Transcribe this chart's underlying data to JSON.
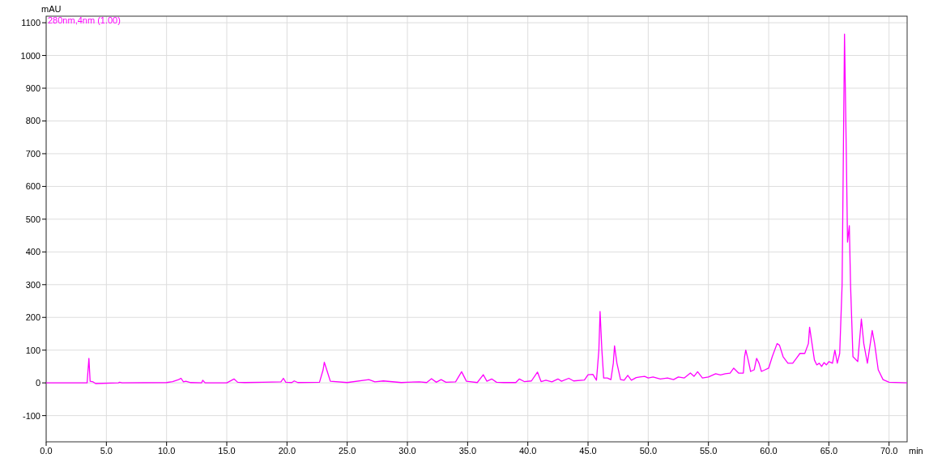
{
  "chart_data": {
    "type": "line",
    "ylabel": "mAU",
    "xlabel": "min",
    "xlim": [
      0,
      71.5
    ],
    "ylim": [
      -180,
      1120
    ],
    "xticks": [
      {
        "value": 0,
        "label": "0.0"
      },
      {
        "value": 5,
        "label": "5.0"
      },
      {
        "value": 10,
        "label": "10.0"
      },
      {
        "value": 15,
        "label": "15.0"
      },
      {
        "value": 20,
        "label": "20.0"
      },
      {
        "value": 25,
        "label": "25.0"
      },
      {
        "value": 30,
        "label": "30.0"
      },
      {
        "value": 35,
        "label": "35.0"
      },
      {
        "value": 40,
        "label": "40.0"
      },
      {
        "value": 45,
        "label": "45.0"
      },
      {
        "value": 50,
        "label": "50.0"
      },
      {
        "value": 55,
        "label": "55.0"
      },
      {
        "value": 60,
        "label": "60.0"
      },
      {
        "value": 65,
        "label": "65.0"
      },
      {
        "value": 70,
        "label": "70.0"
      }
    ],
    "yticks": [
      -100,
      0,
      100,
      200,
      300,
      400,
      500,
      600,
      700,
      800,
      900,
      1000,
      1100
    ],
    "grid": true,
    "legend": "top left",
    "series": [
      {
        "name": "280nm,4nm (1.00)",
        "color": "#ff00ff",
        "x": [
          0,
          3.4,
          3.55,
          3.65,
          3.9,
          4.1,
          6.0,
          6.1,
          6.3,
          10,
          10.5,
          11.0,
          11.2,
          11.4,
          11.6,
          12,
          12.9,
          13.0,
          13.2,
          15,
          15.6,
          15.9,
          16.5,
          18,
          19.5,
          19.7,
          19.9,
          20.4,
          20.6,
          20.9,
          22.7,
          23.0,
          23.1,
          23.3,
          23.6,
          25,
          26.8,
          27.3,
          28,
          29.5,
          30,
          31,
          31.6,
          32.0,
          32.4,
          32.8,
          33.2,
          34.0,
          34.5,
          34.9,
          35.8,
          36.3,
          36.6,
          37.0,
          37.4,
          38,
          39.0,
          39.3,
          39.7,
          40.3,
          40.8,
          41.1,
          41.5,
          42.0,
          42.5,
          42.8,
          43.4,
          43.8,
          44.7,
          45.0,
          45.4,
          45.7,
          45.9,
          46.0,
          46.15,
          46.3,
          46.6,
          46.9,
          47.1,
          47.2,
          47.4,
          47.7,
          48.0,
          48.3,
          48.6,
          49.0,
          49.3,
          49.7,
          50,
          50.4,
          51,
          51.6,
          52.1,
          52.5,
          53,
          53.5,
          53.8,
          54.1,
          54.5,
          55.0,
          55.6,
          56.0,
          56.4,
          56.8,
          57.1,
          57.5,
          57.9,
          58.0,
          58.1,
          58.3,
          58.5,
          58.8,
          59.0,
          59.2,
          59.4,
          59.7,
          60,
          60.3,
          60.7,
          60.9,
          61.2,
          61.6,
          62.0,
          62.3,
          62.6,
          63.0,
          63.3,
          63.4,
          63.6,
          63.8,
          64.0,
          64.2,
          64.4,
          64.6,
          64.8,
          65.0,
          65.3,
          65.5,
          65.7,
          65.9,
          66.1,
          66.3,
          66.45,
          66.55,
          66.7,
          66.8,
          67.0,
          67.4,
          67.7,
          67.9,
          68.2,
          68.6,
          68.8,
          69.1,
          69.5,
          70,
          71.5
        ],
        "values": [
          0,
          0,
          75,
          5,
          3,
          -2,
          0,
          2,
          0,
          1,
          4,
          10,
          14,
          3,
          5,
          1,
          0,
          8,
          0,
          0,
          12,
          2,
          1,
          2,
          3,
          14,
          2,
          1,
          6,
          1,
          2,
          40,
          63,
          40,
          5,
          1,
          10,
          3,
          6,
          1,
          2,
          3,
          1,
          13,
          2,
          10,
          2,
          3,
          34,
          5,
          1,
          25,
          5,
          12,
          2,
          1,
          1,
          12,
          4,
          6,
          33,
          4,
          8,
          3,
          12,
          5,
          14,
          6,
          9,
          25,
          26,
          8,
          100,
          218,
          100,
          15,
          15,
          10,
          60,
          113,
          60,
          10,
          8,
          23,
          8,
          16,
          18,
          20,
          15,
          18,
          12,
          15,
          10,
          18,
          15,
          30,
          20,
          34,
          15,
          18,
          28,
          24,
          28,
          30,
          45,
          30,
          30,
          80,
          100,
          70,
          35,
          40,
          75,
          60,
          35,
          40,
          45,
          80,
          120,
          115,
          80,
          60,
          60,
          75,
          90,
          90,
          120,
          170,
          120,
          70,
          55,
          60,
          50,
          62,
          55,
          65,
          60,
          100,
          60,
          90,
          300,
          1065,
          700,
          430,
          480,
          300,
          80,
          65,
          195,
          120,
          60,
          160,
          120,
          40,
          10,
          2,
          0
        ]
      }
    ]
  }
}
